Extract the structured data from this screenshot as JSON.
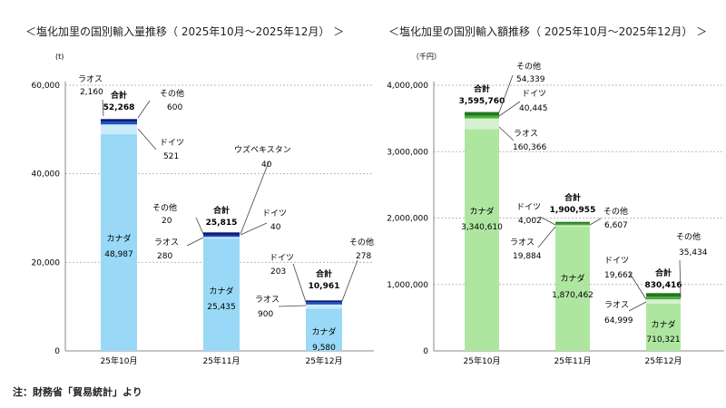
{
  "left_title": "＜塩化加里の国別輸入量推移（ 2025年10月～2025年12月） ＞",
  "right_title": "＜塩化加里の国別輸入額推移（ 2025年10月～2025年12月） ＞",
  "note": "注：財務省「貿易統計」より",
  "colors": {
    "left_canada": "#99d9f7",
    "left_laos": "#c9ecfb",
    "left_germany": "#1f4fbf",
    "left_other": "#0a1d7a",
    "right_canada": "#aee6a0",
    "right_laos": "#d6f1cf",
    "right_germany": "#4cae3c",
    "right_other": "#1f7a1f"
  },
  "chart_data": [
    {
      "type": "bar",
      "stacked": true,
      "title": "＜塩化加里の国別輸入量推移（ 2025年10月～2025年12月） ＞",
      "unit": "(t)",
      "categories": [
        "25年10月",
        "25年11月",
        "25年12月"
      ],
      "ylim": [
        0,
        60000
      ],
      "yticks": [
        "0",
        "20,000",
        "40,000",
        "60,000"
      ],
      "ytick_values": [
        0,
        20000,
        40000,
        60000
      ],
      "series": [
        {
          "name": "カナダ",
          "values": [
            48987,
            25435,
            9580
          ],
          "labels": [
            "48,987",
            "25,435",
            "9,580"
          ]
        },
        {
          "name": "ラオス",
          "values": [
            2160,
            280,
            900
          ],
          "labels": [
            "2,160",
            "280",
            "900"
          ]
        },
        {
          "name": "ドイツ",
          "values": [
            521,
            40,
            203
          ],
          "labels": [
            "521",
            "40",
            "203"
          ]
        },
        {
          "name": "その他",
          "values": [
            600,
            20,
            278
          ],
          "labels": [
            "600",
            "20",
            "278"
          ]
        },
        {
          "name": "ウズベキスタン",
          "values": [
            0,
            40,
            0
          ],
          "labels": [
            "",
            "40",
            ""
          ]
        }
      ],
      "totals_label": "合計",
      "totals": [
        "52,268",
        "25,815",
        "10,961"
      ]
    },
    {
      "type": "bar",
      "stacked": true,
      "title": "＜塩化加里の国別輸入額推移（ 2025年10月～2025年12月） ＞",
      "unit": "（千円）",
      "categories": [
        "25年10月",
        "25年11月",
        "25年12月"
      ],
      "ylim": [
        0,
        4000000
      ],
      "yticks": [
        "0",
        "1,000,000",
        "2,000,000",
        "3,000,000",
        "4,000,000"
      ],
      "ytick_values": [
        0,
        1000000,
        2000000,
        3000000,
        4000000
      ],
      "series": [
        {
          "name": "カナダ",
          "values": [
            3340610,
            1870462,
            710321
          ],
          "labels": [
            "3,340,610",
            "1,870,462",
            "710,321"
          ]
        },
        {
          "name": "ラオス",
          "values": [
            160366,
            19884,
            64999
          ],
          "labels": [
            "160,366",
            "19,884",
            "64,999"
          ]
        },
        {
          "name": "ドイツ",
          "values": [
            40445,
            4002,
            19662
          ],
          "labels": [
            "40,445",
            "4,002",
            "19,662"
          ]
        },
        {
          "name": "その他",
          "values": [
            54339,
            6607,
            35434
          ],
          "labels": [
            "54,339",
            "6,607",
            "35,434"
          ]
        }
      ],
      "totals_label": "合計",
      "totals": [
        "3,595,760",
        "1,900,955",
        "830,416"
      ]
    }
  ]
}
